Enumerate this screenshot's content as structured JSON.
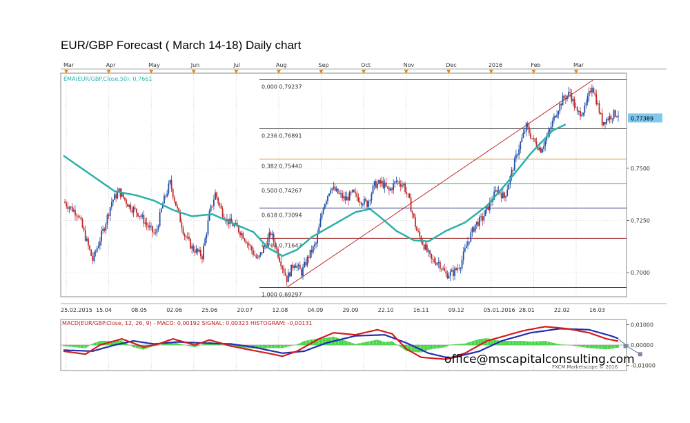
{
  "title": "EUR/GBP Forecast ( March 14-18) Daily chart",
  "watermark": "office@mscapitalconsulting.com",
  "source": "FXCM Marketscope © 2016",
  "colors": {
    "ema": "#2ab0a8",
    "up_candle": "#1f4fa8",
    "down_candle": "#c0282a",
    "macd": "#d41c1c",
    "signal": "#1f2fb0",
    "histogram": "#3ad23a",
    "trendline": "#c0282a",
    "price_label_bg": "#7ec8f0"
  },
  "chart_data": [
    {
      "type": "candlestick",
      "indicator_label": "EMA(EUR/GBP.Close,50): 0,7661",
      "current_price_label": "0,77389",
      "top_month_labels": [
        "Mar",
        "Apr",
        "May",
        "Jun",
        "Jul",
        "Aug",
        "Sep",
        "Oct",
        "Nov",
        "Dec",
        "2016",
        "Feb",
        "Mar"
      ],
      "x_tick_labels": [
        "25.02.2015",
        "15.04",
        "08.05",
        "02.06",
        "25.06",
        "20.07",
        "12.08",
        "04.09",
        "29.09",
        "22.10",
        "16.11",
        "09.12",
        "05.01.2016",
        "28.01",
        "22.02",
        "16.03"
      ],
      "y_tick_labels": [
        "0,7000",
        "0,7250",
        "0,7500"
      ],
      "ylim": [
        0.6885,
        0.7955
      ],
      "fibonacci_levels": [
        {
          "label": "0,000  0,79237",
          "value": 0.79237,
          "color": "#555555"
        },
        {
          "label": "0,236  0,76891",
          "value": 0.76891,
          "color": "#555555"
        },
        {
          "label": "0,382  0,75440",
          "value": 0.7544,
          "color": "#d08a1c"
        },
        {
          "label": "0,500  0,74267",
          "value": 0.74267,
          "color": "#22c022"
        },
        {
          "label": "0,618  0,73094",
          "value": 0.73094,
          "color": "#22227a"
        },
        {
          "label": "0,764  0,71643",
          "value": 0.71643,
          "color": "#9a1c1c"
        },
        {
          "label": "1,000  0,69297",
          "value": 0.69297,
          "color": "#6a0a3a"
        }
      ],
      "ema_keypoints": [
        [
          0,
          0.756
        ],
        [
          35,
          0.739
        ],
        [
          50,
          0.737
        ],
        [
          62,
          0.7345
        ],
        [
          75,
          0.73
        ],
        [
          88,
          0.727
        ],
        [
          102,
          0.728
        ],
        [
          118,
          0.723
        ],
        [
          130,
          0.7195
        ],
        [
          140,
          0.712
        ],
        [
          150,
          0.708
        ],
        [
          160,
          0.711
        ],
        [
          170,
          0.717
        ],
        [
          185,
          0.723
        ],
        [
          200,
          0.729
        ],
        [
          210,
          0.7305
        ],
        [
          218,
          0.726
        ],
        [
          228,
          0.72
        ],
        [
          240,
          0.7155
        ],
        [
          250,
          0.715
        ],
        [
          262,
          0.72
        ],
        [
          275,
          0.724
        ],
        [
          290,
          0.732
        ],
        [
          305,
          0.744
        ],
        [
          320,
          0.757
        ],
        [
          335,
          0.768
        ],
        [
          344,
          0.771
        ]
      ],
      "price_keypoints": [
        [
          0,
          0.734
        ],
        [
          10,
          0.728
        ],
        [
          20,
          0.706
        ],
        [
          28,
          0.722
        ],
        [
          33,
          0.734
        ],
        [
          38,
          0.739
        ],
        [
          45,
          0.732
        ],
        [
          52,
          0.728
        ],
        [
          58,
          0.722
        ],
        [
          63,
          0.718
        ],
        [
          68,
          0.733
        ],
        [
          73,
          0.743
        ],
        [
          78,
          0.73
        ],
        [
          83,
          0.718
        ],
        [
          88,
          0.712
        ],
        [
          95,
          0.708
        ],
        [
          100,
          0.728
        ],
        [
          104,
          0.738
        ],
        [
          108,
          0.73
        ],
        [
          112,
          0.725
        ],
        [
          118,
          0.722
        ],
        [
          123,
          0.718
        ],
        [
          128,
          0.712
        ],
        [
          133,
          0.706
        ],
        [
          138,
          0.713
        ],
        [
          142,
          0.719
        ],
        [
          148,
          0.707
        ],
        [
          153,
          0.697
        ],
        [
          158,
          0.705
        ],
        [
          163,
          0.7
        ],
        [
          168,
          0.708
        ],
        [
          173,
          0.714
        ],
        [
          178,
          0.732
        ],
        [
          183,
          0.741
        ],
        [
          188,
          0.738
        ],
        [
          193,
          0.735
        ],
        [
          198,
          0.738
        ],
        [
          203,
          0.735
        ],
        [
          208,
          0.733
        ],
        [
          213,
          0.742
        ],
        [
          218,
          0.743
        ],
        [
          223,
          0.739
        ],
        [
          228,
          0.744
        ],
        [
          233,
          0.742
        ],
        [
          237,
          0.734
        ],
        [
          242,
          0.72
        ],
        [
          247,
          0.713
        ],
        [
          252,
          0.706
        ],
        [
          257,
          0.705
        ],
        [
          262,
          0.699
        ],
        [
          267,
          0.7
        ],
        [
          272,
          0.704
        ],
        [
          277,
          0.715
        ],
        [
          282,
          0.723
        ],
        [
          287,
          0.726
        ],
        [
          292,
          0.733
        ],
        [
          297,
          0.74
        ],
        [
          302,
          0.736
        ],
        [
          307,
          0.748
        ],
        [
          312,
          0.76
        ],
        [
          317,
          0.77
        ],
        [
          322,
          0.763
        ],
        [
          327,
          0.759
        ],
        [
          332,
          0.766
        ],
        [
          337,
          0.776
        ],
        [
          342,
          0.783
        ],
        [
          347,
          0.786
        ],
        [
          352,
          0.776
        ],
        [
          357,
          0.778
        ],
        [
          362,
          0.79
        ],
        [
          366,
          0.78
        ],
        [
          369,
          0.772
        ],
        [
          373,
          0.774
        ],
        [
          377,
          0.776
        ]
      ],
      "ema_x_max": 344,
      "price_x_max": 380
    },
    {
      "type": "line",
      "indicator_label": "MACD(EUR/GBP.Close, 12, 26, 9) - MACD: 0,00192   SIGNAL: 0,00323   HISTOGRAM: -0,00131",
      "y_tick_labels": [
        "0,01000",
        "0,00000",
        "-0,01000"
      ],
      "ylim": [
        -0.0125,
        0.0125
      ],
      "macd_keypoints": [
        [
          0,
          -0.003
        ],
        [
          15,
          -0.0045
        ],
        [
          25,
          0.0
        ],
        [
          40,
          0.003
        ],
        [
          55,
          -0.001
        ],
        [
          65,
          0.0005
        ],
        [
          75,
          0.003
        ],
        [
          90,
          0.0
        ],
        [
          100,
          0.0025
        ],
        [
          115,
          -0.0005
        ],
        [
          125,
          -0.002
        ],
        [
          140,
          -0.004
        ],
        [
          150,
          -0.0055
        ],
        [
          160,
          -0.003
        ],
        [
          175,
          0.003
        ],
        [
          185,
          0.006
        ],
        [
          200,
          0.005
        ],
        [
          215,
          0.0075
        ],
        [
          225,
          0.0055
        ],
        [
          235,
          -0.002
        ],
        [
          245,
          -0.006
        ],
        [
          262,
          -0.007
        ],
        [
          275,
          -0.004
        ],
        [
          290,
          0.002
        ],
        [
          300,
          0.004
        ],
        [
          315,
          0.007
        ],
        [
          330,
          0.009
        ],
        [
          345,
          0.008
        ],
        [
          360,
          0.006
        ],
        [
          372,
          0.003
        ],
        [
          380,
          0.0019
        ]
      ],
      "signal_keypoints": [
        [
          0,
          -0.0025
        ],
        [
          20,
          -0.003
        ],
        [
          35,
          0.0
        ],
        [
          48,
          0.002
        ],
        [
          62,
          0.0005
        ],
        [
          78,
          0.0015
        ],
        [
          95,
          0.001
        ],
        [
          115,
          0.0005
        ],
        [
          130,
          -0.001
        ],
        [
          150,
          -0.004
        ],
        [
          165,
          -0.003
        ],
        [
          180,
          0.001
        ],
        [
          200,
          0.0045
        ],
        [
          220,
          0.005
        ],
        [
          235,
          0.001
        ],
        [
          250,
          -0.004
        ],
        [
          265,
          -0.0065
        ],
        [
          285,
          -0.003
        ],
        [
          300,
          0.002
        ],
        [
          320,
          0.006
        ],
        [
          340,
          0.008
        ],
        [
          360,
          0.0075
        ],
        [
          375,
          0.0045
        ],
        [
          380,
          0.0032
        ]
      ],
      "forecast_keypoints": [
        [
          380,
          0.003
        ],
        [
          388,
          -0.0015
        ],
        [
          395,
          -0.0045
        ]
      ]
    }
  ]
}
